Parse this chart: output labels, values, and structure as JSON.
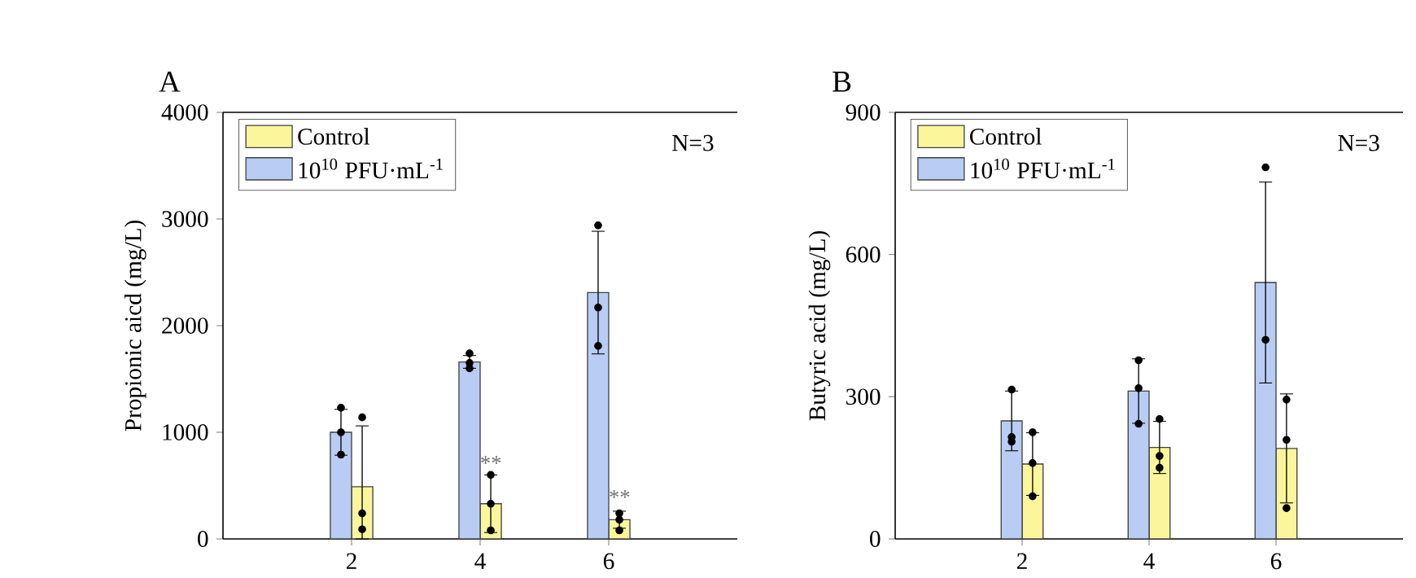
{
  "chart_data": [
    {
      "type": "bar",
      "title": "A",
      "ylabel": "Propionic aicd (mg/L)",
      "xlim": [
        0,
        8
      ],
      "xticks": [
        2,
        4,
        6
      ],
      "ylim": [
        0,
        4000
      ],
      "yticks": [
        0,
        1000,
        2000,
        3000,
        4000
      ],
      "legend": "top left",
      "series": [
        {
          "name": "Control",
          "color": "#fbf69c",
          "x": [
            2.165,
            4.165,
            6.165
          ],
          "values": [
            490,
            330,
            180
          ],
          "errors": [
            [
              0,
              1060
            ],
            270,
            80
          ]
        },
        {
          "name": "10$^{10}$ PFU·mL$^{-1}$",
          "color": "#b9cdf4",
          "x": [
            1.835,
            3.835,
            5.835
          ],
          "values": [
            1000,
            1660,
            2310
          ],
          "errors": [
            215,
            60,
            575
          ]
        },
        {
          "type": "scatter",
          "color": "#000000",
          "x": [
            1.835,
            1.835,
            1.835,
            2.165,
            2.165,
            2.165,
            3.835,
            3.835,
            3.835,
            4.165,
            4.165,
            4.165,
            5.835,
            5.835,
            5.835,
            6.165,
            6.165,
            6.165
          ],
          "values": [
            1230,
            1000,
            790,
            1140,
            240,
            90,
            1740,
            1650,
            1600,
            600,
            330,
            80,
            2940,
            2170,
            1810,
            240,
            180,
            80
          ]
        }
      ],
      "annotations": [
        "N=3",
        "**",
        "**"
      ]
    },
    {
      "type": "bar",
      "title": "B",
      "ylabel": "Butyric acid (mg/L)",
      "xlim": [
        0,
        8
      ],
      "xticks": [
        2,
        4,
        6
      ],
      "ylim": [
        0,
        900
      ],
      "yticks": [
        0,
        300,
        600,
        900
      ],
      "legend": "top left",
      "series": [
        {
          "name": "Control",
          "color": "#fbf69c",
          "x": [
            2.165,
            4.165,
            6.165
          ],
          "values": [
            158,
            193,
            191
          ],
          "errors": [
            66,
            55,
            115
          ]
        },
        {
          "name": "10$^{10}$ PFU·mL$^{-1}$",
          "color": "#b9cdf4",
          "x": [
            1.835,
            3.835,
            5.835
          ],
          "values": [
            249,
            312,
            541
          ],
          "errors": [
            63,
            68,
            212
          ]
        },
        {
          "type": "scatter",
          "color": "#000000",
          "x": [
            1.835,
            1.835,
            1.835,
            2.165,
            2.165,
            2.165,
            3.835,
            3.835,
            3.835,
            4.165,
            4.165,
            4.165,
            5.835,
            5.835,
            6.165,
            6.165,
            6.165
          ],
          "values": [
            315,
            215,
            205,
            225,
            160,
            90,
            377,
            318,
            243,
            253,
            175,
            150,
            784,
            420,
            294,
            209,
            65
          ]
        }
      ],
      "annotations": [
        "N=3"
      ]
    }
  ]
}
